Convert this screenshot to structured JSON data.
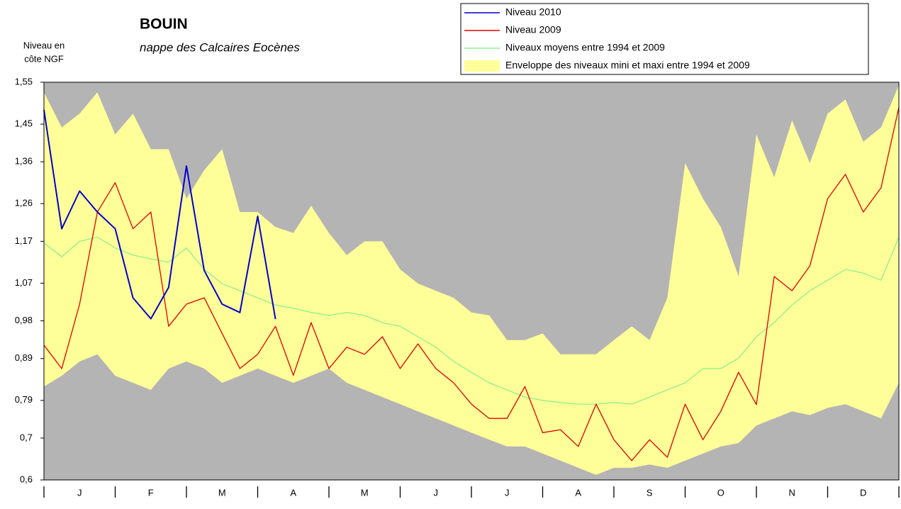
{
  "chart_data": {
    "type": "line",
    "title": "BOUIN",
    "subtitle": "nappe des Calcaires Eocènes",
    "y_label": [
      "Niveau en",
      "côte NGF"
    ],
    "categories": [
      "J",
      "F",
      "M",
      "A",
      "M",
      "J",
      "J",
      "A",
      "S",
      "O",
      "N",
      "D"
    ],
    "x": [
      0,
      0.25,
      0.5,
      0.75,
      1,
      1.25,
      1.5,
      1.75,
      2,
      2.25,
      2.5,
      2.75,
      3,
      3.25,
      3.5,
      3.75,
      4,
      4.25,
      4.5,
      4.75,
      5,
      5.25,
      5.5,
      5.75,
      6,
      6.25,
      6.5,
      6.75,
      7,
      7.25,
      7.5,
      7.75,
      8,
      8.25,
      8.5,
      8.75,
      9,
      9.25,
      9.5,
      9.75,
      10,
      10.25,
      10.5,
      10.75,
      11,
      11.25,
      11.5,
      11.75,
      12
    ],
    "xlim": [
      0,
      12
    ],
    "xticks": [
      0,
      1,
      2,
      3,
      4,
      5,
      6,
      7,
      8,
      9,
      10,
      11,
      12
    ],
    "ylim": [
      0.6,
      1.55
    ],
    "yticks": [
      {
        "value": 1.55,
        "label": "1,55"
      },
      {
        "value": 1.45,
        "label": "1,45"
      },
      {
        "value": 1.36,
        "label": "1,36"
      },
      {
        "value": 1.26,
        "label": "1,26"
      },
      {
        "value": 1.17,
        "label": "1,17"
      },
      {
        "value": 1.07,
        "label": "1,07"
      },
      {
        "value": 0.98,
        "label": "0,98"
      },
      {
        "value": 0.89,
        "label": "0,89"
      },
      {
        "value": 0.79,
        "label": "0,79"
      },
      {
        "value": 0.7,
        "label": "0,7"
      },
      {
        "value": 0.6,
        "label": "0,6"
      }
    ],
    "plot_background": "#b4b4b4",
    "legend": "top-right",
    "band": {
      "name": "Enveloppe des niveaux mini et maxi entre 1994 et 2009",
      "color": "#ffff99",
      "upper": [
        1.526,
        1.442,
        1.475,
        1.526,
        1.425,
        1.475,
        1.39,
        1.39,
        1.272,
        1.34,
        1.39,
        1.24,
        1.24,
        1.204,
        1.19,
        1.255,
        1.19,
        1.137,
        1.17,
        1.17,
        1.103,
        1.069,
        1.052,
        1.035,
        1.0,
        0.993,
        0.934,
        0.934,
        0.95,
        0.9,
        0.9,
        0.9,
        0.934,
        0.967,
        0.934,
        1.035,
        1.357,
        1.272,
        1.204,
        1.086,
        1.425,
        1.323,
        1.459,
        1.357,
        1.475,
        1.509,
        1.408,
        1.442,
        1.543
      ],
      "lower": [
        0.823,
        0.849,
        0.883,
        0.9,
        0.849,
        0.832,
        0.815,
        0.866,
        0.883,
        0.866,
        0.832,
        0.849,
        0.866,
        0.849,
        0.832,
        0.849,
        0.866,
        0.832,
        0.815,
        0.798,
        0.781,
        0.764,
        0.747,
        0.73,
        0.713,
        0.696,
        0.68,
        0.68,
        0.663,
        0.646,
        0.629,
        0.612,
        0.629,
        0.629,
        0.637,
        0.629,
        0.646,
        0.663,
        0.68,
        0.688,
        0.73,
        0.747,
        0.764,
        0.755,
        0.772,
        0.781,
        0.764,
        0.747,
        0.832
      ]
    },
    "series": [
      {
        "name": "Niveau 2010",
        "color": "#0000cc",
        "values": [
          1.484,
          1.2,
          1.29,
          1.24,
          1.2,
          1.035,
          0.985,
          1.06,
          1.35,
          1.1,
          1.02,
          1.0,
          1.23,
          0.984,
          null,
          null,
          null,
          null,
          null,
          null,
          null,
          null,
          null,
          null,
          null,
          null,
          null,
          null,
          null,
          null,
          null,
          null,
          null,
          null,
          null,
          null,
          null,
          null,
          null,
          null,
          null,
          null,
          null,
          null,
          null,
          null,
          null,
          null,
          null
        ]
      },
      {
        "name": "Niveau 2009",
        "color": "#e00000",
        "values": [
          0.922,
          0.866,
          1.02,
          1.24,
          1.31,
          1.2,
          1.24,
          0.967,
          1.02,
          1.035,
          0.95,
          0.866,
          0.9,
          0.967,
          0.85,
          0.976,
          0.866,
          0.917,
          0.9,
          0.942,
          0.866,
          0.925,
          0.866,
          0.832,
          0.781,
          0.747,
          0.747,
          0.823,
          0.713,
          0.72,
          0.68,
          0.781,
          0.696,
          0.646,
          0.696,
          0.654,
          0.781,
          0.696,
          0.764,
          0.857,
          0.78,
          1.086,
          1.052,
          1.111,
          1.272,
          1.33,
          1.24,
          1.298,
          1.49
        ]
      },
      {
        "name": "Niveaux moyens entre 1994 et 2009",
        "color": "#90ee90",
        "values": [
          1.166,
          1.133,
          1.17,
          1.18,
          1.154,
          1.137,
          1.128,
          1.12,
          1.154,
          1.103,
          1.069,
          1.052,
          1.035,
          1.018,
          1.01,
          1.0,
          0.993,
          1.0,
          0.993,
          0.976,
          0.967,
          0.942,
          0.917,
          0.883,
          0.857,
          0.832,
          0.815,
          0.798,
          0.79,
          0.785,
          0.781,
          0.781,
          0.785,
          0.781,
          0.798,
          0.815,
          0.832,
          0.866,
          0.866,
          0.891,
          0.942,
          0.976,
          1.018,
          1.052,
          1.077,
          1.103,
          1.094,
          1.077,
          1.18
        ]
      }
    ]
  }
}
